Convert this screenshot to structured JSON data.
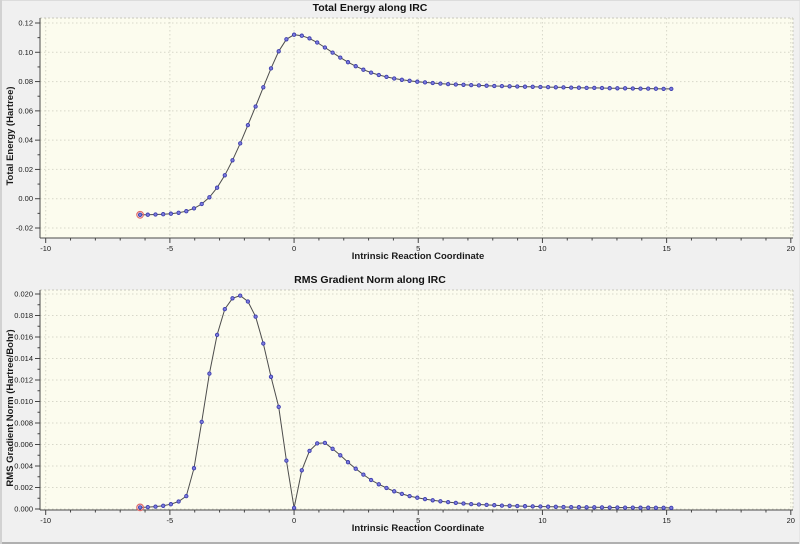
{
  "theme": {
    "window_background": "#f0f0f0",
    "plot_background": "#fcfcee",
    "grid_color": "#d7d7c9",
    "frame_dash_color": "#c8c8bc",
    "axis_color": "#4a4a4a",
    "tick_color": "#444444",
    "text_color": "#1a1a1a",
    "line_color": "#4d4d4d",
    "marker_fill": "#7d7ddd",
    "marker_stroke": "#3d3dae",
    "highlight_ring_color": "#e06a6a"
  },
  "chart_data": [
    {
      "type": "line",
      "title": "Total Energy along IRC",
      "xlabel": "Intrinsic Reaction Coordinate",
      "ylabel": "Total Energy (Hartree)",
      "grid": true,
      "legend": "none",
      "markers": "circle",
      "highlighted_point_index": 0,
      "xlim": [
        -10,
        20
      ],
      "ylim": [
        -0.02,
        0.12
      ],
      "x_ticks": [
        -10,
        -5,
        0,
        5,
        10,
        15,
        20
      ],
      "x_tick_labels": [
        "-10",
        "-5",
        "0",
        "5",
        "10",
        "15",
        "20"
      ],
      "x_minor_step": 1,
      "y_ticks": [
        -0.02,
        0.0,
        0.02,
        0.04,
        0.06,
        0.08,
        0.1,
        0.12
      ],
      "y_tick_labels": [
        "-0.02",
        "0.00",
        "0.02",
        "0.04",
        "0.06",
        "0.08",
        "0.10",
        "0.12"
      ],
      "y_minor_step": 0.01,
      "series": [
        {
          "name": "Total Energy",
          "x": [
            -6.2,
            -5.89,
            -5.58,
            -5.27,
            -4.96,
            -4.65,
            -4.34,
            -4.03,
            -3.72,
            -3.41,
            -3.1,
            -2.79,
            -2.48,
            -2.17,
            -1.86,
            -1.55,
            -1.24,
            -0.93,
            -0.62,
            -0.31,
            0,
            0.31,
            0.62,
            0.93,
            1.24,
            1.55,
            1.86,
            2.17,
            2.48,
            2.79,
            3.1,
            3.41,
            3.72,
            4.03,
            4.34,
            4.65,
            4.96,
            5.27,
            5.58,
            5.89,
            6.2,
            6.51,
            6.82,
            7.13,
            7.44,
            7.75,
            8.06,
            8.37,
            8.68,
            8.99,
            9.3,
            9.61,
            9.92,
            10.23,
            10.54,
            10.85,
            11.16,
            11.47,
            11.78,
            12.09,
            12.4,
            12.71,
            13.02,
            13.33,
            13.64,
            13.95,
            14.26,
            14.57,
            14.88,
            15.19
          ],
          "y": [
            -0.011,
            -0.0109,
            -0.0108,
            -0.0106,
            -0.0102,
            -0.0096,
            -0.0085,
            -0.0066,
            -0.0036,
            0.001,
            0.0075,
            0.016,
            0.0262,
            0.0378,
            0.0503,
            0.063,
            0.0761,
            0.089,
            0.1007,
            0.1089,
            0.112,
            0.1113,
            0.1095,
            0.1067,
            0.1033,
            0.0998,
            0.0964,
            0.0932,
            0.0905,
            0.0881,
            0.0861,
            0.0845,
            0.0832,
            0.0821,
            0.0812,
            0.0805,
            0.0799,
            0.0794,
            0.079,
            0.0786,
            0.0783,
            0.078,
            0.0778,
            0.0776,
            0.0774,
            0.0772,
            0.077,
            0.0769,
            0.0768,
            0.0766,
            0.0765,
            0.0764,
            0.0763,
            0.0762,
            0.0761,
            0.076,
            0.0759,
            0.0758,
            0.0757,
            0.0757,
            0.0756,
            0.0755,
            0.0754,
            0.0754,
            0.0753,
            0.0752,
            0.0752,
            0.0751,
            0.075,
            0.075
          ]
        }
      ]
    },
    {
      "type": "line",
      "title": "RMS Gradient Norm along IRC",
      "xlabel": "Intrinsic Reaction Coordinate",
      "ylabel": "RMS Gradient Norm (Hartree/Bohr)",
      "grid": true,
      "legend": "none",
      "markers": "circle",
      "highlighted_point_index": 0,
      "xlim": [
        -10,
        20
      ],
      "ylim": [
        0.0,
        0.02
      ],
      "x_ticks": [
        -10,
        -5,
        0,
        5,
        10,
        15,
        20
      ],
      "x_tick_labels": [
        "-10",
        "-5",
        "0",
        "5",
        "10",
        "15",
        "20"
      ],
      "x_minor_step": 1,
      "y_ticks": [
        0.0,
        0.002,
        0.004,
        0.006,
        0.008,
        0.01,
        0.012,
        0.014,
        0.016,
        0.018,
        0.02
      ],
      "y_tick_labels": [
        "0.000",
        "0.002",
        "0.004",
        "0.006",
        "0.008",
        "0.010",
        "0.012",
        "0.014",
        "0.016",
        "0.018",
        "0.020"
      ],
      "y_minor_step": 0.001,
      "series": [
        {
          "name": "RMS Gradient Norm",
          "x": [
            -6.2,
            -5.89,
            -5.58,
            -5.27,
            -4.96,
            -4.65,
            -4.34,
            -4.03,
            -3.72,
            -3.41,
            -3.1,
            -2.79,
            -2.48,
            -2.17,
            -1.86,
            -1.55,
            -1.24,
            -0.93,
            -0.62,
            -0.31,
            0,
            0.31,
            0.62,
            0.93,
            1.24,
            1.55,
            1.86,
            2.17,
            2.48,
            2.79,
            3.1,
            3.41,
            3.72,
            4.03,
            4.34,
            4.65,
            4.96,
            5.27,
            5.58,
            5.89,
            6.2,
            6.51,
            6.82,
            7.13,
            7.44,
            7.75,
            8.06,
            8.37,
            8.68,
            8.99,
            9.3,
            9.61,
            9.92,
            10.23,
            10.54,
            10.85,
            11.16,
            11.47,
            11.78,
            12.09,
            12.4,
            12.71,
            13.02,
            13.33,
            13.64,
            13.95,
            14.26,
            14.57,
            14.88,
            15.19
          ],
          "y": [
            0.00015,
            0.00018,
            0.00022,
            0.0003,
            0.00045,
            0.0007,
            0.0012,
            0.0038,
            0.0081,
            0.0126,
            0.0162,
            0.0186,
            0.0196,
            0.01985,
            0.0193,
            0.0179,
            0.0154,
            0.0123,
            0.0095,
            0.0045,
            0.0001,
            0.0036,
            0.0054,
            0.0061,
            0.00615,
            0.0056,
            0.005,
            0.00435,
            0.00375,
            0.0032,
            0.0027,
            0.0023,
            0.00195,
            0.00165,
            0.0014,
            0.0012,
            0.00105,
            0.00092,
            0.00081,
            0.00072,
            0.00064,
            0.00057,
            0.00051,
            0.00046,
            0.00042,
            0.00038,
            0.00035,
            0.00032,
            0.0003,
            0.00028,
            0.00026,
            0.00024,
            0.00023,
            0.00021,
            0.0002,
            0.00019,
            0.00018,
            0.00017,
            0.00016,
            0.00016,
            0.00015,
            0.00014,
            0.00014,
            0.00013,
            0.00013,
            0.00012,
            0.00012,
            0.00011,
            0.00011,
            0.0001
          ]
        }
      ]
    }
  ]
}
